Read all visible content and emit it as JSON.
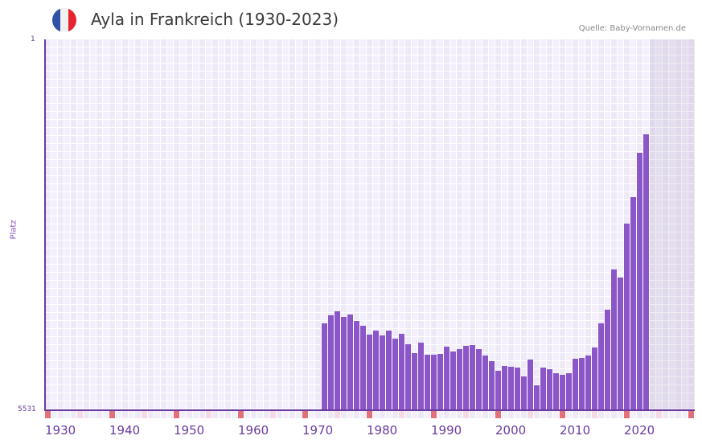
{
  "header": {
    "title": "Ayla in Frankreich (1930-2023)",
    "source": "Quelle: Baby-Vornamen.de",
    "flag_icon": "france-flag-icon",
    "flag_colors": [
      "#2f52a5",
      "#f1f1f4",
      "#e5252d"
    ]
  },
  "colors": {
    "bar": "#8b56c7",
    "axis": "#6a3aa0",
    "decade_marker": "#e3717a",
    "half_decade_marker": "#f5d9e3"
  },
  "axis": {
    "y_top_label": "1",
    "y_bottom_label": "5531",
    "y_title": "Platz"
  },
  "chart_data": {
    "type": "bar",
    "title": "Ayla in Frankreich (1930-2023)",
    "xlabel": "",
    "ylabel": "Platz",
    "ylim": [
      5531,
      1
    ],
    "y_inverted": true,
    "xticks": [
      "1930",
      "1940",
      "1950",
      "1960",
      "1970",
      "1980",
      "1990",
      "2000",
      "2010",
      "2020"
    ],
    "grid": true,
    "legend": null,
    "categories": [
      1972,
      1973,
      1974,
      1975,
      1976,
      1977,
      1978,
      1979,
      1980,
      1981,
      1982,
      1983,
      1984,
      1985,
      1986,
      1987,
      1988,
      1989,
      1990,
      1991,
      1992,
      1993,
      1994,
      1995,
      1996,
      1997,
      1998,
      1999,
      2000,
      2001,
      2002,
      2003,
      2004,
      2005,
      2006,
      2007,
      2008,
      2009,
      2010,
      2011,
      2012,
      2013,
      2014,
      2015,
      2016,
      2017,
      2018,
      2019,
      2020,
      2021,
      2022
    ],
    "values": [
      4236,
      4116,
      4056,
      4140,
      4104,
      4200,
      4272,
      4404,
      4344,
      4416,
      4344,
      4464,
      4392,
      4548,
      4680,
      4524,
      4704,
      4704,
      4692,
      4584,
      4656,
      4620,
      4572,
      4560,
      4620,
      4716,
      4800,
      4944,
      4872,
      4884,
      4896,
      5028,
      4776,
      5160,
      4896,
      4920,
      4980,
      5004,
      4980,
      4764,
      4752,
      4716,
      4596,
      4236,
      4032,
      3432,
      3552,
      2748,
      2352,
      1692,
      1416
    ]
  }
}
